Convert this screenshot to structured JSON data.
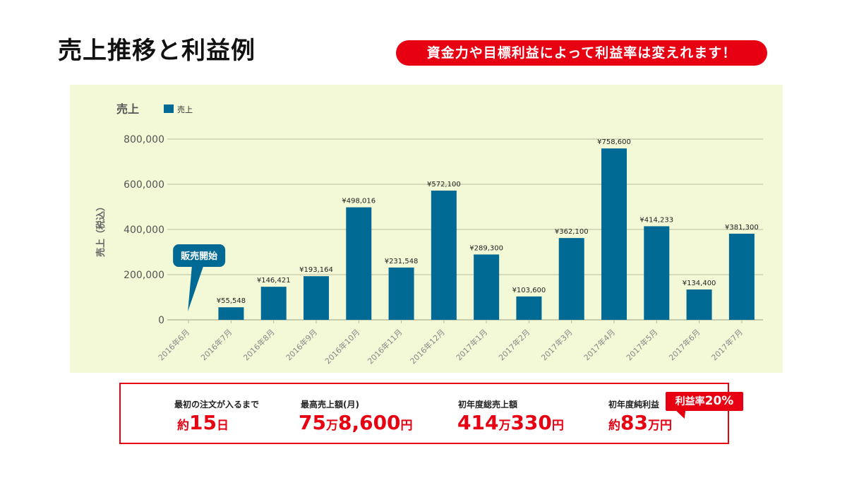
{
  "page": {
    "title": "売上推移と利益例",
    "notice": "資金力や目標利益によって利益率は変えれます！"
  },
  "chart_data": {
    "type": "bar",
    "title": "売上",
    "ylabel": "売上（税込）",
    "xlabel": "",
    "legend": [
      "売上"
    ],
    "legend_position": "top-left",
    "grid": true,
    "ylim": [
      0,
      800000
    ],
    "yticks": [
      "0",
      "200,000",
      "400,000",
      "600,000",
      "800,000"
    ],
    "categories": [
      "2016年6月",
      "2016年7月",
      "2016年8月",
      "2016年9月",
      "2016年10月",
      "2016年11月",
      "2016年12月",
      "2017年1月",
      "2017年2月",
      "2017年3月",
      "2017年4月",
      "2017年5月",
      "2017年6月",
      "2017年7月"
    ],
    "series": [
      {
        "name": "売上",
        "color": "#006a94",
        "values": [
          0,
          55548,
          146421,
          193164,
          498016,
          231548,
          572100,
          289300,
          103600,
          362100,
          758600,
          414233,
          134400,
          381300
        ],
        "labels": [
          "",
          "¥55,548",
          "¥146,421",
          "¥193,164",
          "¥498,016",
          "¥231,548",
          "¥572,100",
          "¥289,300",
          "¥103,600",
          "¥362,100",
          "¥758,600",
          "¥414,233",
          "¥134,400",
          "¥381,300"
        ]
      }
    ],
    "annotation": "販売開始"
  },
  "summary": {
    "items": [
      {
        "label": "最初の注文が入るまで",
        "prefix": "約",
        "main": "15",
        "unit": "日",
        "main2": "",
        "unit2": ""
      },
      {
        "label": "最高売上額(月)",
        "prefix": "",
        "main": "75",
        "unit": "万",
        "main2": "8,600",
        "unit2": "円"
      },
      {
        "label": "初年度総売上額",
        "prefix": "",
        "main": "414",
        "unit": "万",
        "main2": "330",
        "unit2": "円"
      },
      {
        "label": "初年度純利益",
        "prefix": "約",
        "main": "83",
        "unit": "万円",
        "main2": "",
        "unit2": ""
      }
    ],
    "rate_badge": {
      "text": "利益率",
      "value": "20%"
    }
  },
  "colors": {
    "accent": "#e60012",
    "bar": "#006a94",
    "panel": "#f3f8d6",
    "grid": "#b8bda0"
  }
}
